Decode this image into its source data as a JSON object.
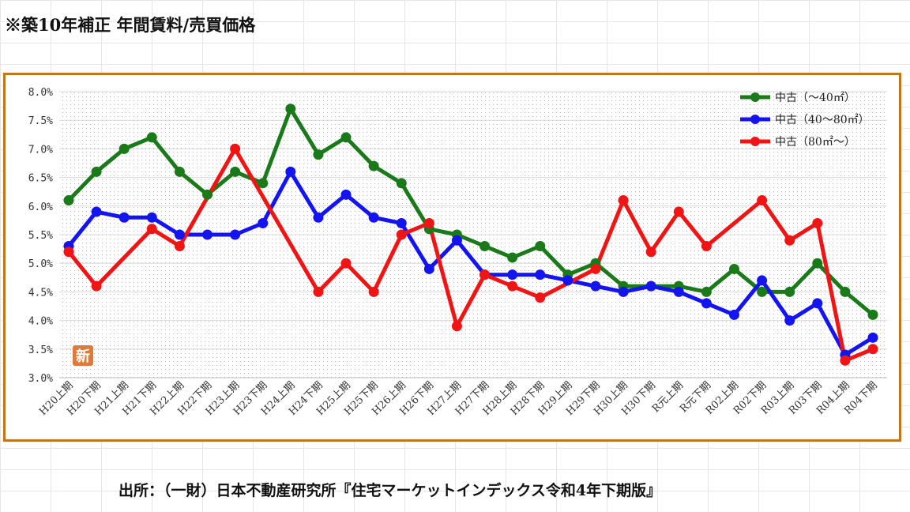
{
  "title": "※築10年補正 年間賃料/売買価格",
  "source": "出所：（一財）日本不動産研究所『住宅マーケットインデックス令和4年下期版』",
  "badge_text": "新",
  "chart_data": {
    "type": "line",
    "title": "",
    "xlabel": "",
    "ylabel": "",
    "ylim": [
      3.0,
      8.0
    ],
    "yticks": [
      "3.0%",
      "3.5%",
      "4.0%",
      "4.5%",
      "5.0%",
      "5.5%",
      "6.0%",
      "6.5%",
      "7.0%",
      "7.5%",
      "8.0%"
    ],
    "grid": "dotted",
    "legend_position": "top-right",
    "categories": [
      "H20上期",
      "H20下期",
      "H21上期",
      "H21下期",
      "H22上期",
      "H22下期",
      "H23上期",
      "H23下期",
      "H24上期",
      "H24下期",
      "H25上期",
      "H25下期",
      "H26上期",
      "H26下期",
      "H27上期",
      "H27下期",
      "H28上期",
      "H28下期",
      "H29上期",
      "H29下期",
      "H30上期",
      "H30下期",
      "R元上期",
      "R元下期",
      "R02上期",
      "R02下期",
      "R03上期",
      "R03下期",
      "R04上期",
      "R04下期"
    ],
    "series": [
      {
        "name": "中古（～40㎡）",
        "color": "#1a7a1a",
        "values": [
          6.1,
          6.6,
          7.0,
          7.2,
          6.6,
          6.2,
          6.6,
          6.4,
          7.7,
          6.9,
          7.2,
          6.7,
          6.4,
          5.6,
          5.5,
          5.3,
          5.1,
          5.3,
          4.8,
          5.0,
          4.6,
          4.6,
          4.6,
          4.5,
          4.9,
          4.5,
          4.5,
          5.0,
          4.5,
          4.1
        ]
      },
      {
        "name": "中古（40～80㎡）",
        "color": "#1414f0",
        "values": [
          5.3,
          5.9,
          5.8,
          5.8,
          5.5,
          5.5,
          5.5,
          5.7,
          6.6,
          5.8,
          6.2,
          5.8,
          5.7,
          4.9,
          5.4,
          4.8,
          4.8,
          4.8,
          4.7,
          4.6,
          4.5,
          4.6,
          4.5,
          4.3,
          4.1,
          4.7,
          4.0,
          4.3,
          3.4,
          3.7
        ]
      },
      {
        "name": "中古（80㎡～）",
        "color": "#f01414",
        "points": [
          [
            0,
            5.2
          ],
          [
            1,
            4.6
          ],
          [
            3,
            5.6
          ],
          [
            4,
            5.3
          ],
          [
            6,
            7.0
          ],
          [
            9,
            4.5
          ],
          [
            10,
            5.0
          ],
          [
            11,
            4.5
          ],
          [
            12,
            5.5
          ],
          [
            13,
            5.7
          ],
          [
            14,
            3.9
          ],
          [
            15,
            4.8
          ],
          [
            16,
            4.6
          ],
          [
            17,
            4.4
          ],
          [
            19,
            4.9
          ],
          [
            20,
            6.1
          ],
          [
            21,
            5.2
          ],
          [
            22,
            5.9
          ],
          [
            23,
            5.3
          ],
          [
            25,
            6.1
          ],
          [
            26,
            5.4
          ],
          [
            27,
            5.7
          ],
          [
            28,
            3.3
          ],
          [
            29,
            3.5
          ]
        ]
      }
    ]
  }
}
